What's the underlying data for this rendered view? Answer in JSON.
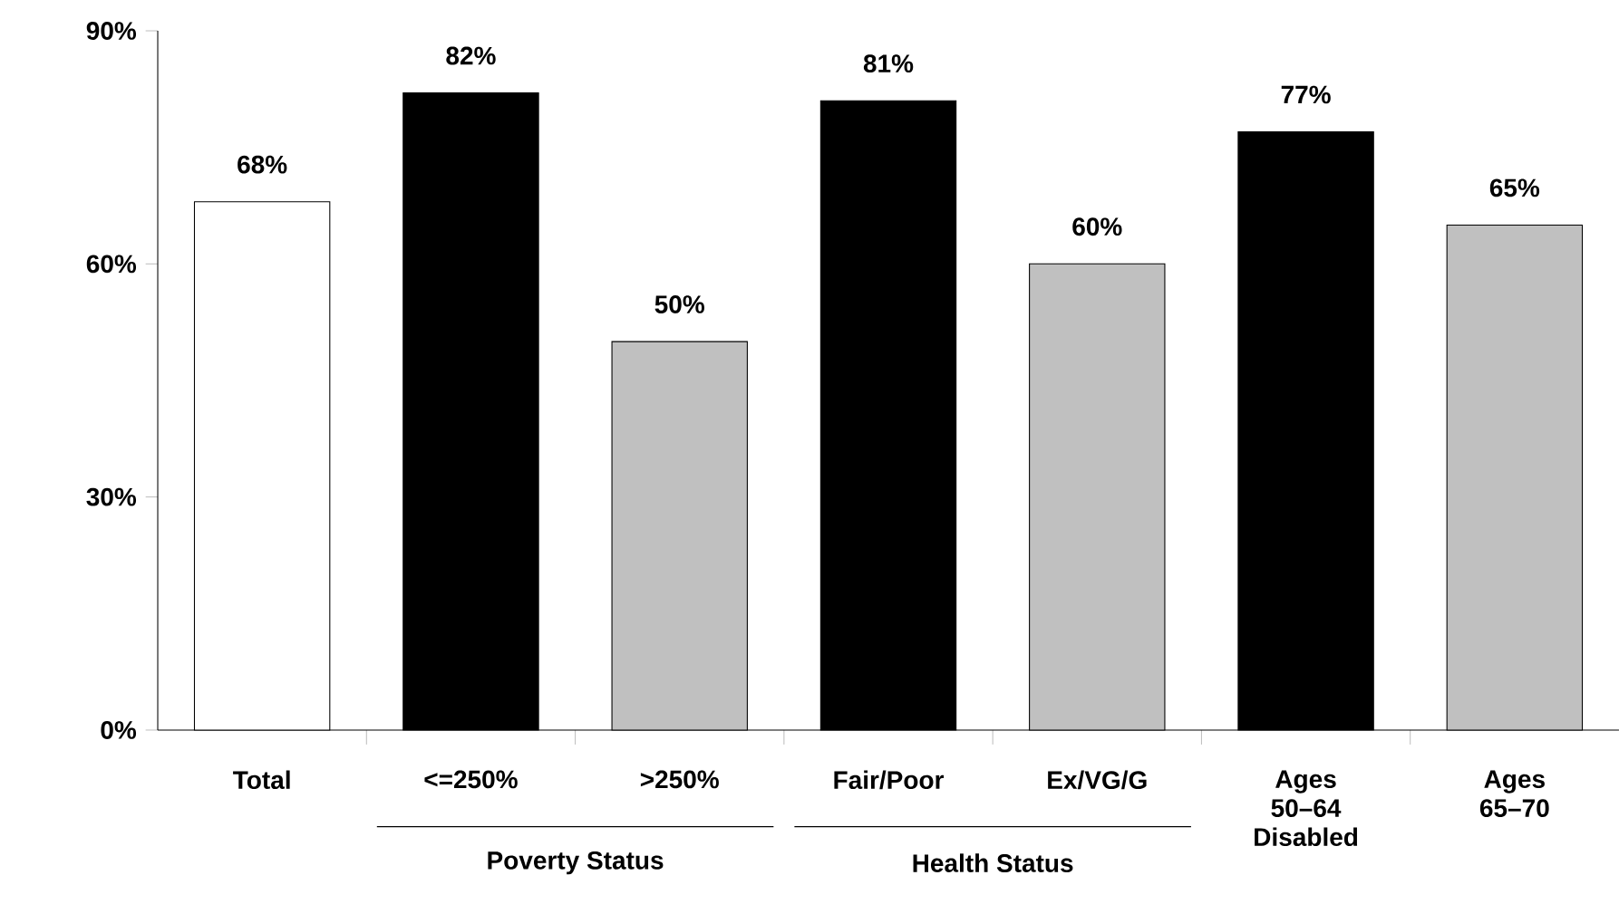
{
  "chart_data": {
    "type": "bar",
    "categories": [
      "Total",
      "<=250%",
      ">250%",
      "Fair/Poor",
      "Ex/VG/G",
      "Ages 50–64 Disabled",
      "Ages 65–70"
    ],
    "values": [
      68,
      82,
      50,
      81,
      60,
      77,
      65
    ],
    "colors": [
      "#ffffff",
      "#000000",
      "#c0c0c0",
      "#000000",
      "#c0c0c0",
      "#000000",
      "#c0c0c0"
    ],
    "value_labels": [
      "68%",
      "82%",
      "50%",
      "81%",
      "60%",
      "77%",
      "65%"
    ],
    "ylim": [
      0,
      90
    ],
    "yticks": [
      {
        "value": 0,
        "label": "0%"
      },
      {
        "value": 30,
        "label": "30%"
      },
      {
        "value": 60,
        "label": "60%"
      },
      {
        "value": 90,
        "label": "90%"
      }
    ],
    "annotations": [
      "Poverty Status",
      "Health Status"
    ],
    "grid": false
  }
}
